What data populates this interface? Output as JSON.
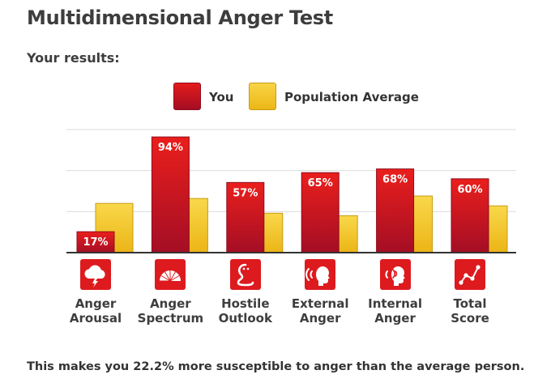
{
  "page": {
    "title": "Multidimensional Anger Test",
    "subtitle": "Your results:",
    "footer": "This makes you 22.2% more susceptible to anger than the average person."
  },
  "legend": [
    {
      "label": "You",
      "color": "#d7141d"
    },
    {
      "label": "Population Average",
      "color": "#f4c82e"
    }
  ],
  "chart_data": {
    "type": "bar",
    "categories": [
      {
        "line1": "Anger",
        "line2": "Arousal",
        "icon": "storm-cloud-icon"
      },
      {
        "line1": "Anger",
        "line2": "Spectrum",
        "icon": "spectrum-fan-icon"
      },
      {
        "line1": "Hostile",
        "line2": "Outlook",
        "icon": "cobra-icon"
      },
      {
        "line1": "External",
        "line2": "Anger",
        "icon": "head-shouting-icon"
      },
      {
        "line1": "Internal",
        "line2": "Anger",
        "icon": "head-inner-voice-icon"
      },
      {
        "line1": "Total",
        "line2": "Score",
        "icon": "line-graph-icon"
      }
    ],
    "series": [
      {
        "name": "You",
        "values": [
          17,
          94,
          57,
          65,
          68,
          60
        ],
        "labels": [
          "17%",
          "94%",
          "57%",
          "65%",
          "68%",
          "60%"
        ],
        "color": "#d7141d"
      },
      {
        "name": "Population Average",
        "values": [
          40,
          44,
          32,
          30,
          46,
          38
        ],
        "color": "#f4c82e"
      }
    ],
    "ylim": [
      0,
      100
    ],
    "grid": true,
    "legend_position": "top"
  }
}
